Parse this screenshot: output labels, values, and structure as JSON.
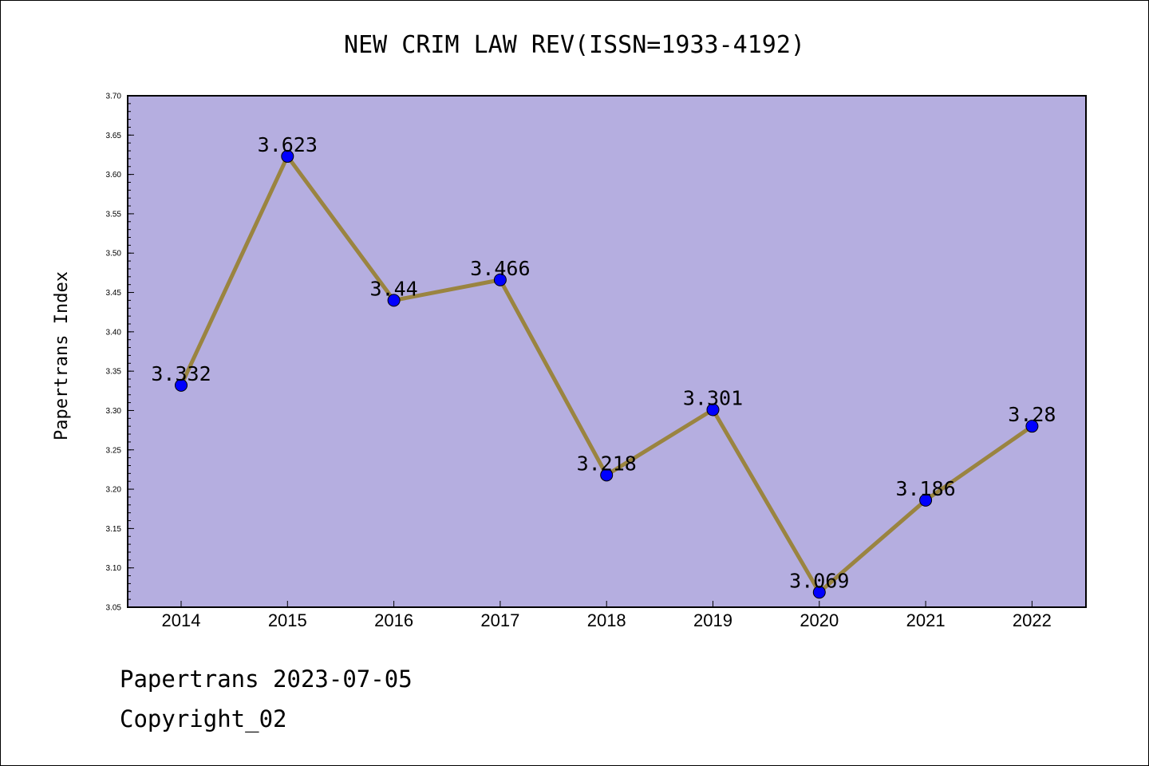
{
  "chart_data": {
    "type": "line",
    "title": "NEW CRIM LAW REV(ISSN=1933-4192)",
    "xlabel": "",
    "ylabel": "Papertrans Index",
    "categories": [
      "2014",
      "2015",
      "2016",
      "2017",
      "2018",
      "2019",
      "2020",
      "2021",
      "2022"
    ],
    "series": [
      {
        "values": [
          3.332,
          3.623,
          3.44,
          3.466,
          3.218,
          3.301,
          3.069,
          3.186,
          3.28
        ]
      }
    ],
    "data_labels": [
      "3.332",
      "3.623",
      "3.44",
      "3.466",
      "3.218",
      "3.301",
      "3.069",
      "3.186",
      "3.28"
    ],
    "ylim": [
      3.05,
      3.7
    ],
    "yticks": [
      "3.05",
      "3.10",
      "3.15",
      "3.20",
      "3.25",
      "3.30",
      "3.35",
      "3.40",
      "3.45",
      "3.50",
      "3.55",
      "3.60",
      "3.65",
      "3.70"
    ],
    "grid": false,
    "colors": {
      "plot_background": "#b5aee0",
      "line": "#9a8440",
      "marker": "#0000ff"
    }
  },
  "footer": {
    "line1": "Papertrans 2023-07-05",
    "line2": "Copyright_02"
  }
}
